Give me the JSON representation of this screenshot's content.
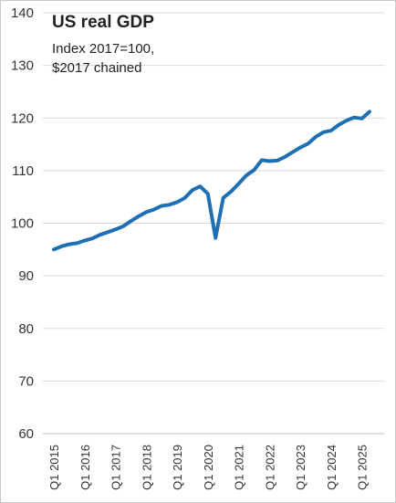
{
  "chart_data": {
    "type": "line",
    "title": "US real GDP",
    "subtitle_lines": [
      "Index 2017=100,",
      "$2017 chained"
    ],
    "xlabel": "",
    "ylabel": "",
    "ylim": [
      60,
      140
    ],
    "yticks": [
      60,
      70,
      80,
      90,
      100,
      110,
      120,
      130,
      140
    ],
    "x_tick_labels": [
      "Q1 2015",
      "Q1 2016",
      "Q1 2017",
      "Q1 2018",
      "Q1 2019",
      "Q1 2020",
      "Q1 2021",
      "Q1 2022",
      "Q1 2023",
      "Q1 2024",
      "Q1 2025"
    ],
    "grid": "horizontal",
    "legend": "none",
    "line_color": "#1f6fb5",
    "series": [
      {
        "x": [
          "Q1 2015",
          "Q2 2015",
          "Q3 2015",
          "Q4 2015",
          "Q1 2016",
          "Q2 2016",
          "Q3 2016",
          "Q4 2016",
          "Q1 2017",
          "Q2 2017",
          "Q3 2017",
          "Q4 2017",
          "Q1 2018",
          "Q2 2018",
          "Q3 2018",
          "Q4 2018",
          "Q1 2019",
          "Q2 2019",
          "Q3 2019",
          "Q4 2019",
          "Q1 2020",
          "Q2 2020",
          "Q3 2020",
          "Q4 2020",
          "Q1 2021",
          "Q2 2021",
          "Q3 2021",
          "Q4 2021",
          "Q1 2022",
          "Q2 2022",
          "Q3 2022",
          "Q4 2022",
          "Q1 2023",
          "Q2 2023",
          "Q3 2023",
          "Q4 2023",
          "Q1 2024",
          "Q2 2024",
          "Q3 2024",
          "Q4 2024",
          "Q1 2025",
          "Q2 2025"
        ],
        "values": [
          95.0,
          95.6,
          96.0,
          96.2,
          96.7,
          97.1,
          97.8,
          98.3,
          98.8,
          99.4,
          100.4,
          101.3,
          102.1,
          102.6,
          103.3,
          103.5,
          104.0,
          104.8,
          106.3,
          107.0,
          105.6,
          97.2,
          104.8,
          106.0,
          107.5,
          109.1,
          110.1,
          112.0,
          111.8,
          111.9,
          112.6,
          113.5,
          114.4,
          115.1,
          116.4,
          117.3,
          117.6,
          118.7,
          119.5,
          120.1,
          119.9,
          121.2
        ]
      }
    ]
  }
}
